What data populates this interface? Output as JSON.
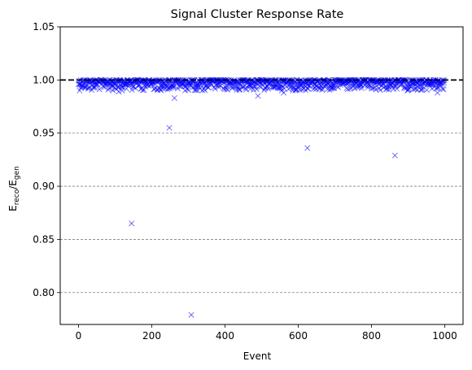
{
  "chart_data": {
    "type": "scatter",
    "title": "Signal Cluster Response Rate",
    "xlabel": "Event",
    "ylabel": {
      "base": "E",
      "num_sub": "reco",
      "sep": "/",
      "den_base": "E",
      "den_sub": "gen"
    },
    "xlim": [
      -50,
      1050
    ],
    "ylim": [
      0.77,
      1.05
    ],
    "xticks": [
      0,
      200,
      400,
      600,
      800,
      1000
    ],
    "xtick_labels": [
      "0",
      "200",
      "400",
      "600",
      "800",
      "1000"
    ],
    "yticks": [
      0.8,
      0.85,
      0.9,
      0.95,
      1.0,
      1.05
    ],
    "ytick_labels": [
      "0.80",
      "0.85",
      "0.90",
      "0.95",
      "1.00",
      "1.05"
    ],
    "grid": {
      "axis": "y",
      "style": "dashed",
      "color": "#808080"
    },
    "reference_line": {
      "y": 1.0,
      "style": "dashed",
      "color": "#000000"
    },
    "marker": {
      "shape": "x",
      "color": "#0000ff",
      "alpha": 0.5
    },
    "series": [
      {
        "outliers": [
          {
            "x": 145,
            "y": 0.865
          },
          {
            "x": 248,
            "y": 0.955
          },
          {
            "x": 262,
            "y": 0.983
          },
          {
            "x": 308,
            "y": 0.779
          },
          {
            "x": 490,
            "y": 0.985
          },
          {
            "x": 625,
            "y": 0.936
          },
          {
            "x": 864,
            "y": 0.929
          },
          {
            "x": 110,
            "y": 0.989
          },
          {
            "x": 560,
            "y": 0.988
          },
          {
            "x": 980,
            "y": 0.988
          }
        ],
        "bulk": {
          "x_start": 0,
          "x_end": 999,
          "count": 1000,
          "y_min": 0.99,
          "y_max": 1.0,
          "y_mode": 0.998
        }
      }
    ]
  }
}
